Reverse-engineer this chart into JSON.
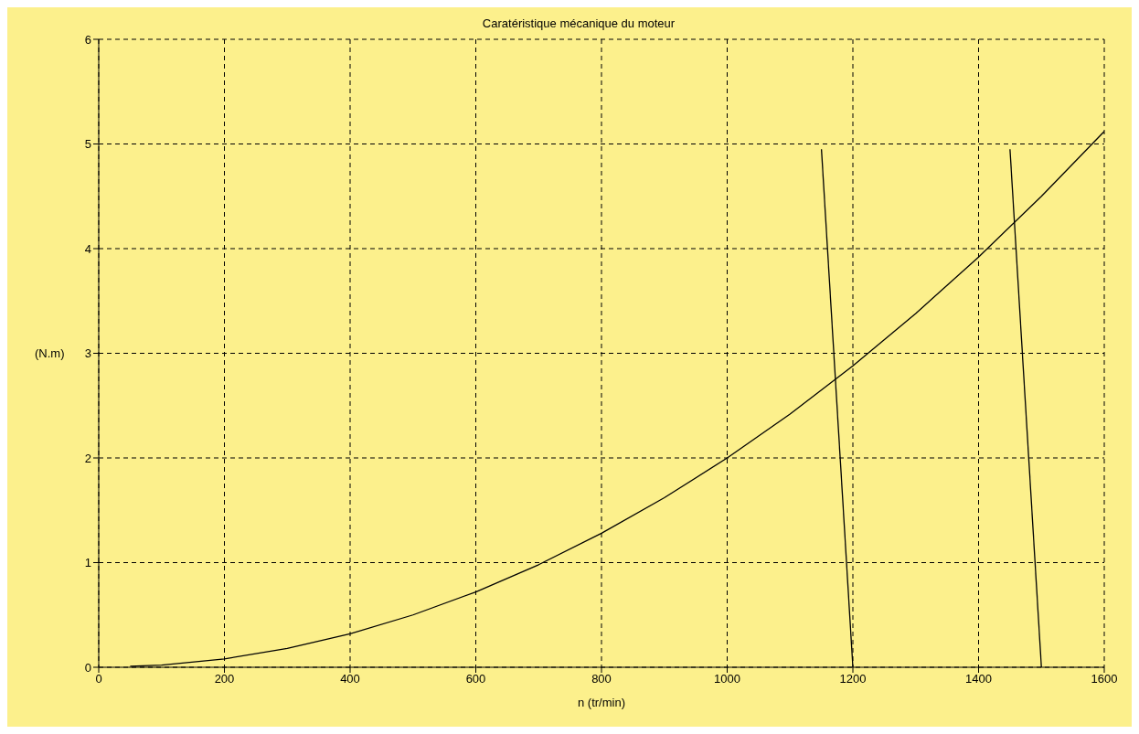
{
  "chart_data": {
    "type": "line",
    "title": "Caratéristique mécanique du moteur",
    "xlabel": "n (tr/min)",
    "ylabel": "(N.m)",
    "xlim": [
      0,
      1600
    ],
    "xticks": [
      0,
      200,
      400,
      600,
      800,
      1000,
      1200,
      1400,
      1600
    ],
    "ylim": [
      0,
      6
    ],
    "yticks": [
      0,
      1,
      2,
      3,
      4,
      5,
      6
    ],
    "grid": true,
    "legend": false,
    "marker": "none",
    "line_style": "solid",
    "series": [
      {
        "color": "#000000",
        "x": [
          50,
          100,
          200,
          300,
          400,
          500,
          600,
          700,
          800,
          900,
          1000,
          1100,
          1200,
          1300,
          1400,
          1500,
          1600
        ],
        "values": [
          0.01,
          0.02,
          0.08,
          0.18,
          0.32,
          0.5,
          0.72,
          0.98,
          1.28,
          1.62,
          2.0,
          2.42,
          2.88,
          3.38,
          3.92,
          4.5,
          5.12
        ]
      },
      {
        "color": "#000000",
        "x": [
          1150,
          1200
        ],
        "values": [
          4.95,
          0
        ]
      },
      {
        "color": "#000000",
        "x": [
          1450,
          1500
        ],
        "values": [
          4.95,
          0
        ]
      }
    ]
  }
}
